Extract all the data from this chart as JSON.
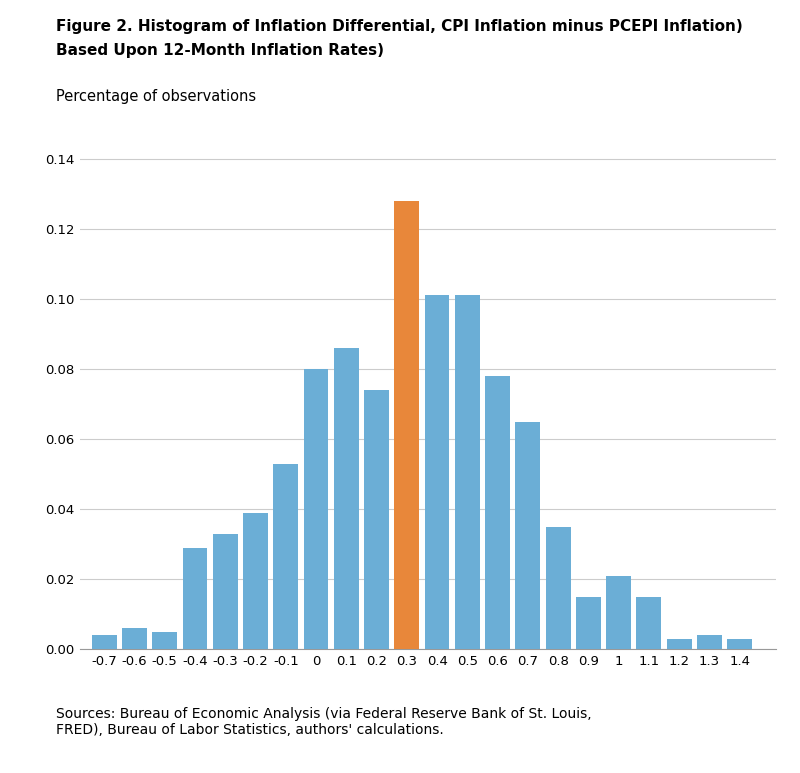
{
  "title_line1": "Figure 2. Histogram of Inflation Differential, CPI Inflation minus PCEPI Inflation)",
  "title_line2": "Based Upon 12-Month Inflation Rates)",
  "ylabel": "Percentage of observations",
  "source_text": "Sources: Bureau of Economic Analysis (via Federal Reserve Bank of St. Louis,\nFRED), Bureau of Labor Statistics, authors' calculations.",
  "categories": [
    -0.7,
    -0.6,
    -0.5,
    -0.4,
    -0.3,
    -0.2,
    -0.1,
    0.0,
    0.1,
    0.2,
    0.3,
    0.4,
    0.5,
    0.6,
    0.7,
    0.8,
    0.9,
    1.0,
    1.1,
    1.2,
    1.3,
    1.4
  ],
  "values": [
    0.004,
    0.006,
    0.005,
    0.029,
    0.033,
    0.039,
    0.053,
    0.08,
    0.086,
    0.074,
    0.128,
    0.101,
    0.101,
    0.078,
    0.065,
    0.035,
    0.015,
    0.021,
    0.015,
    0.003,
    0.004,
    0.003
  ],
  "highlight_index": 10,
  "bar_color": "#6BAED6",
  "highlight_color": "#E8873A",
  "ylim": [
    0,
    0.15
  ],
  "yticks": [
    0,
    0.02,
    0.04,
    0.06,
    0.08,
    0.1,
    0.12,
    0.14
  ],
  "background_color": "#ffffff",
  "grid_color": "#cccccc",
  "title_fontsize": 11,
  "label_fontsize": 10.5,
  "tick_fontsize": 9.5,
  "source_fontsize": 10
}
